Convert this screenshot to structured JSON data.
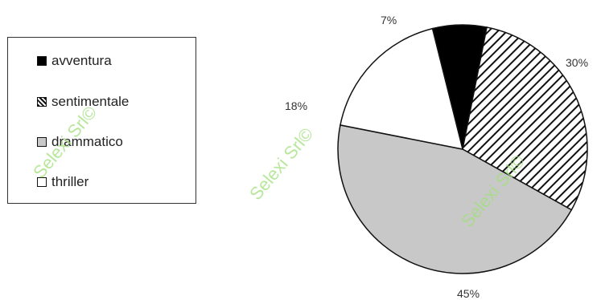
{
  "chart_data": {
    "type": "pie",
    "title": "",
    "categories": [
      "avventura",
      "sentimentale",
      "drammatico",
      "thriller"
    ],
    "values": [
      7,
      30,
      45,
      18
    ],
    "value_labels": [
      "7%",
      "30%",
      "45%",
      "18%"
    ],
    "fills": [
      "black",
      "hatched",
      "#c8c8c8",
      "#ffffff"
    ],
    "legend_position": "left"
  },
  "watermark": {
    "text": "Selexi Srl©"
  }
}
